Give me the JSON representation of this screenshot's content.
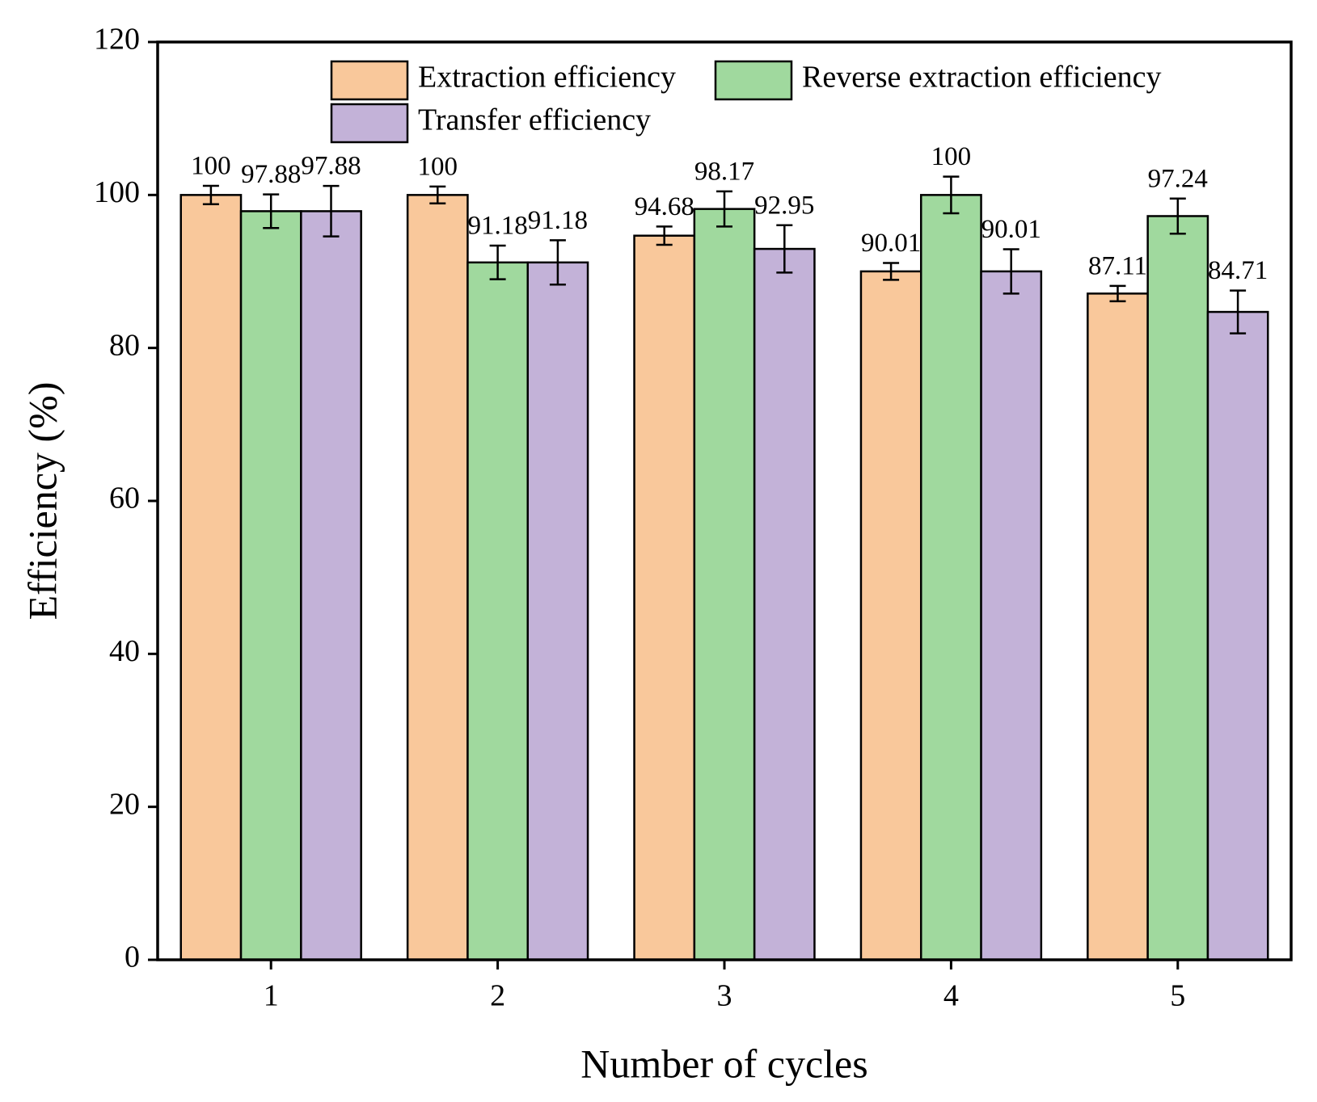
{
  "chart_data": {
    "type": "bar",
    "x_label": "Number of cycles",
    "y_label": "Efficiency (%)",
    "categories": [
      "1",
      "2",
      "3",
      "4",
      "5"
    ],
    "series": [
      {
        "name": "Extraction efficiency",
        "color": "#f9c89b",
        "values": [
          100,
          100,
          94.68,
          90.01,
          87.11
        ],
        "errors": [
          1.2,
          1.1,
          1.2,
          1.1,
          1.0
        ]
      },
      {
        "name": "Reverse extraction efficiency",
        "color": "#a0d99e",
        "values": [
          97.88,
          91.18,
          98.17,
          100,
          97.24
        ],
        "errors": [
          2.2,
          2.2,
          2.3,
          2.4,
          2.3
        ]
      },
      {
        "name": "Transfer efficiency",
        "color": "#c3b2d8",
        "values": [
          97.88,
          91.18,
          92.95,
          90.01,
          84.71
        ],
        "errors": [
          3.3,
          2.9,
          3.1,
          2.9,
          2.8
        ]
      }
    ],
    "ylim": [
      0,
      120
    ],
    "yticks": [
      0,
      20,
      40,
      60,
      80,
      100,
      120
    ],
    "grid": false,
    "legend": "upper center"
  }
}
